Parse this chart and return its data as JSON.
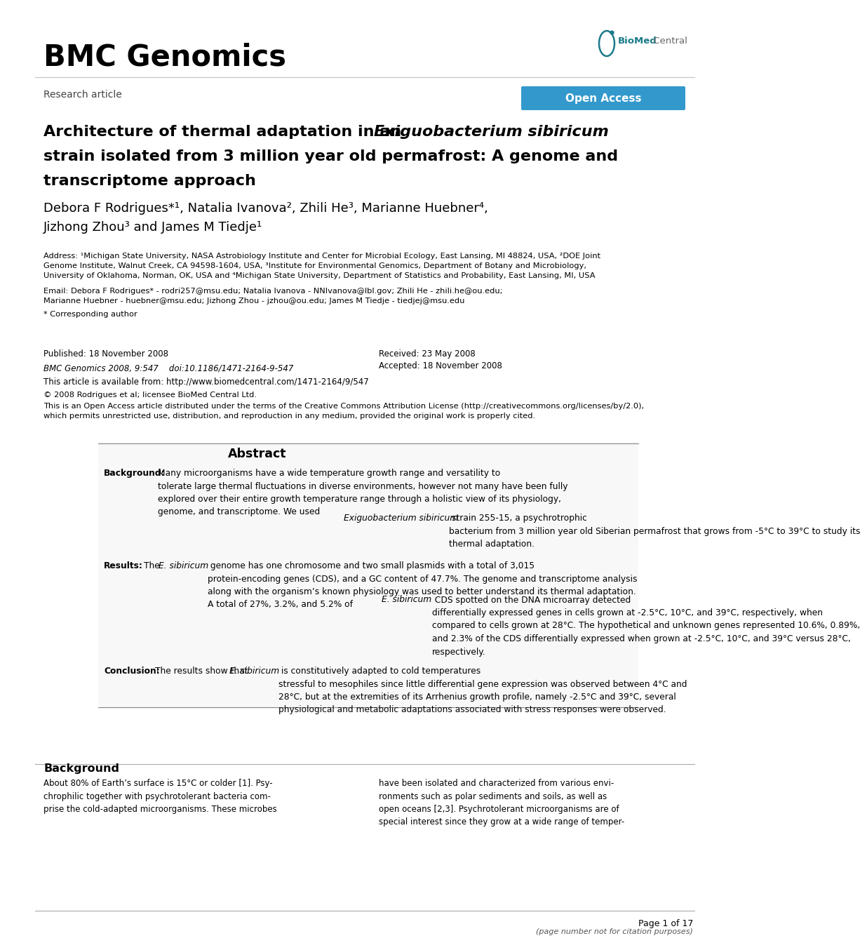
{
  "bg_color": "#ffffff",
  "journal_title": "BMC Genomics",
  "research_article_text": "Research article",
  "open_access_text": "Open Access",
  "paper_title_bold1": "Architecture of thermal adaptation in an ",
  "paper_title_italic": "Exiguobacterium sibiricum",
  "paper_title_line2": "strain isolated from 3 million year old permafrost: A genome and",
  "paper_title_line3": "transcriptome approach",
  "authors_line1": "Debora F Rodrigues*¹, Natalia Ivanova², Zhili He³, Marianne Huebner⁴,",
  "authors_line2": "Jizhong Zhou³ and James M Tiedje¹",
  "address_text": "Address: ¹Michigan State University, NASA Astrobiology Institute and Center for Microbial Ecology, East Lansing, MI 48824, USA, ²DOE Joint\nGenome Institute, Walnut Creek, CA 94598-1604, USA, ³Institute for Environmental Genomics, Department of Botany and Microbiology,\nUniversity of Oklahoma, Norman, OK, USA and ⁴Michigan State University, Department of Statistics and Probability, East Lansing, MI, USA",
  "email_text": "Email: Debora F Rodrigues* - rodri257@msu.edu; Natalia Ivanova - NNIvanova@lbl.gov; Zhili He - zhili.he@ou.edu;\nMarianne Huebner - huebner@msu.edu; Jizhong Zhou - jzhou@ou.edu; James M Tiedje - tiedjej@msu.edu",
  "corresponding_text": "* Corresponding author",
  "published_text": "Published: 18 November 2008",
  "received_text": "Received: 23 May 2008",
  "accepted_text": "Accepted: 18 November 2008",
  "bmc_cite_text": "BMC Genomics 2008, 9:547    doi:10.1186/1471-2164-9-547",
  "available_text": "This article is available from: http://www.biomedcentral.com/1471-2164/9/547",
  "copyright_text": "© 2008 Rodrigues et al; licensee BioMed Central Ltd.",
  "license_text": "This is an Open Access article distributed under the terms of the Creative Commons Attribution License (http://creativecommons.org/licenses/by/2.0),\nwhich permits unrestricted use, distribution, and reproduction in any medium, provided the original work is properly cited.",
  "abstract_title": "Abstract",
  "background_label": "Background:",
  "background_body": "Many microorganisms have a wide temperature growth range and versatility to\ntolerate large thermal fluctuations in diverse environments, however not many have been fully\nexplored over their entire growth temperature range through a holistic view of its physiology,\ngenome, and transcriptome. We used ",
  "background_italic": "Exiguobacterium sibiricum",
  "background_tail": " strain 255-15, a psychrotrophic\nbacterium from 3 million year old Siberian permafrost that grows from -5°C to 39°C to study its\nthermal adaptation.",
  "results_label": "Results:",
  "results_body": "The ",
  "results_italic": "E. sibiricum",
  "results_tail": " genome has one chromosome and two small plasmids with a total of 3,015\nprotein-encoding genes (CDS), and a GC content of 47.7%. The genome and transcriptome analysis\nalong with the organism’s known physiology was used to better understand its thermal adaptation.\nA total of 27%, 3.2%, and 5.2% of ",
  "results_italic2": "E. sibiricum",
  "results_tail2": " CDS spotted on the DNA microarray detected\ndifferentially expressed genes in cells grown at -2.5°C, 10°C, and 39°C, respectively, when\ncompared to cells grown at 28°C. The hypothetical and unknown genes represented 10.6%, 0.89%,\nand 2.3% of the CDS differentially expressed when grown at -2.5°C, 10°C, and 39°C versus 28°C,\nrespectively.",
  "conclusion_label": "Conclusion:",
  "conclusion_body": "The results show that ",
  "conclusion_italic": "E. sibiricum",
  "conclusion_tail": " is constitutively adapted to cold temperatures\nstressful to mesophiles since little differential gene expression was observed between 4°C and\n28°C, but at the extremities of its Arrhenius growth profile, namely -2.5°C and 39°C, several\nphysiological and metabolic adaptations associated with stress responses were observed.",
  "bg_section_title": "Background",
  "bg_left_col": "About 80% of Earth’s surface is 15°C or colder [1]. Psy-\nchrophilic together with psychrotolerant bacteria com-\nprise the cold-adapted microorganisms. These microbes",
  "bg_right_col": "have been isolated and characterized from various envi-\nronments such as polar sediments and soils, as well as\nopen oceans [2,3]. Psychrotolerant microorganisms are of\nspecial interest since they grow at a wide range of temper-",
  "page_footer": "Page 1 of 17",
  "page_footer_note": "(page number not for citation purposes)"
}
